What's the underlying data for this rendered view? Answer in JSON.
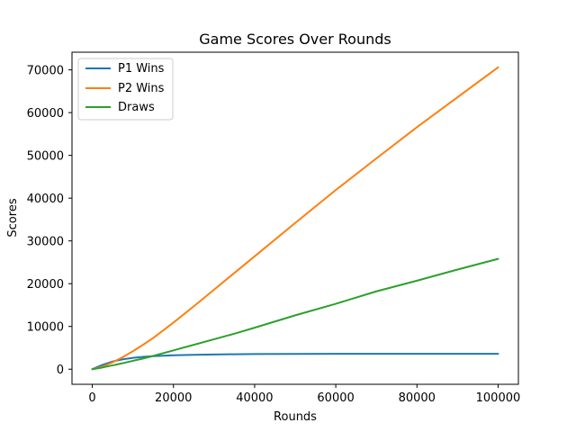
{
  "chart_data": {
    "type": "line",
    "title": "Game Scores Over Rounds",
    "xlabel": "Rounds",
    "ylabel": "Scores",
    "xlim": [
      -5000,
      105000
    ],
    "ylim": [
      -3530,
      74130
    ],
    "xticks": [
      0,
      20000,
      40000,
      60000,
      80000,
      100000
    ],
    "yticks": [
      0,
      10000,
      20000,
      30000,
      40000,
      50000,
      60000,
      70000
    ],
    "x": [
      0,
      2500,
      5000,
      7500,
      10000,
      12500,
      15000,
      20000,
      25000,
      30000,
      35000,
      40000,
      50000,
      60000,
      70000,
      80000,
      90000,
      100000
    ],
    "series": [
      {
        "name": "P1 Wins",
        "color": "#1f77b4",
        "values": [
          0,
          1000,
          1800,
          2300,
          2650,
          2900,
          3050,
          3250,
          3350,
          3450,
          3500,
          3550,
          3580,
          3590,
          3595,
          3600,
          3600,
          3600
        ]
      },
      {
        "name": "P2 Wins",
        "color": "#ff7f0e",
        "values": [
          0,
          600,
          1600,
          2800,
          4200,
          5700,
          7300,
          10900,
          14700,
          18600,
          22500,
          26400,
          34200,
          41900,
          49300,
          56600,
          63600,
          70600
        ]
      },
      {
        "name": "Draws",
        "color": "#2ca02c",
        "values": [
          0,
          400,
          900,
          1400,
          1950,
          2500,
          3100,
          4400,
          5700,
          7000,
          8300,
          9700,
          12600,
          15300,
          18200,
          20700,
          23300,
          25800
        ]
      }
    ],
    "legend": "top-left",
    "grid": false
  }
}
